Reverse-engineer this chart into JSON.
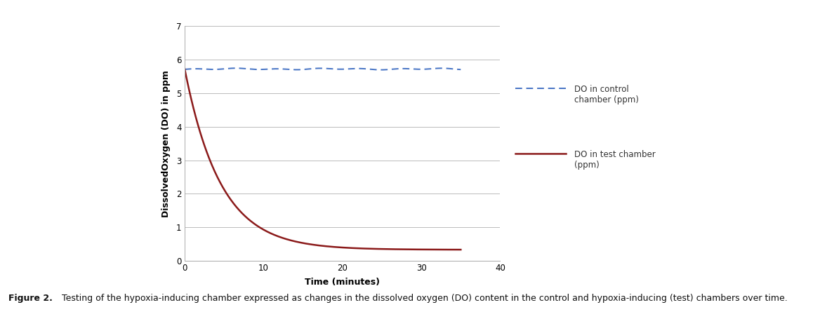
{
  "xlabel": "Time (minutes)",
  "ylabel": "DissolvedOxygen (DO) in ppm",
  "xlim": [
    0,
    40
  ],
  "ylim": [
    0,
    7
  ],
  "yticks": [
    0,
    1,
    2,
    3,
    4,
    5,
    6,
    7
  ],
  "xticks": [
    0,
    10,
    20,
    30,
    40
  ],
  "control_color": "#4472C4",
  "test_color": "#8B1A1A",
  "control_label": "DO in control\nchamber (ppm)",
  "test_label": "DO in test chamber\n(ppm)",
  "background_color": "#ffffff",
  "grid_color": "#bbbbbb",
  "control_y_value": 5.72,
  "test_y_start": 5.75,
  "test_decay_rate": 0.22,
  "test_asymptote": 0.33,
  "caption_bold": "Figure 2.",
  "caption_normal": " Testing of the hypoxia-inducing chamber expressed as changes in the dissolved oxygen (DO) content in the control and hypoxia-inducing (test) chambers over time."
}
